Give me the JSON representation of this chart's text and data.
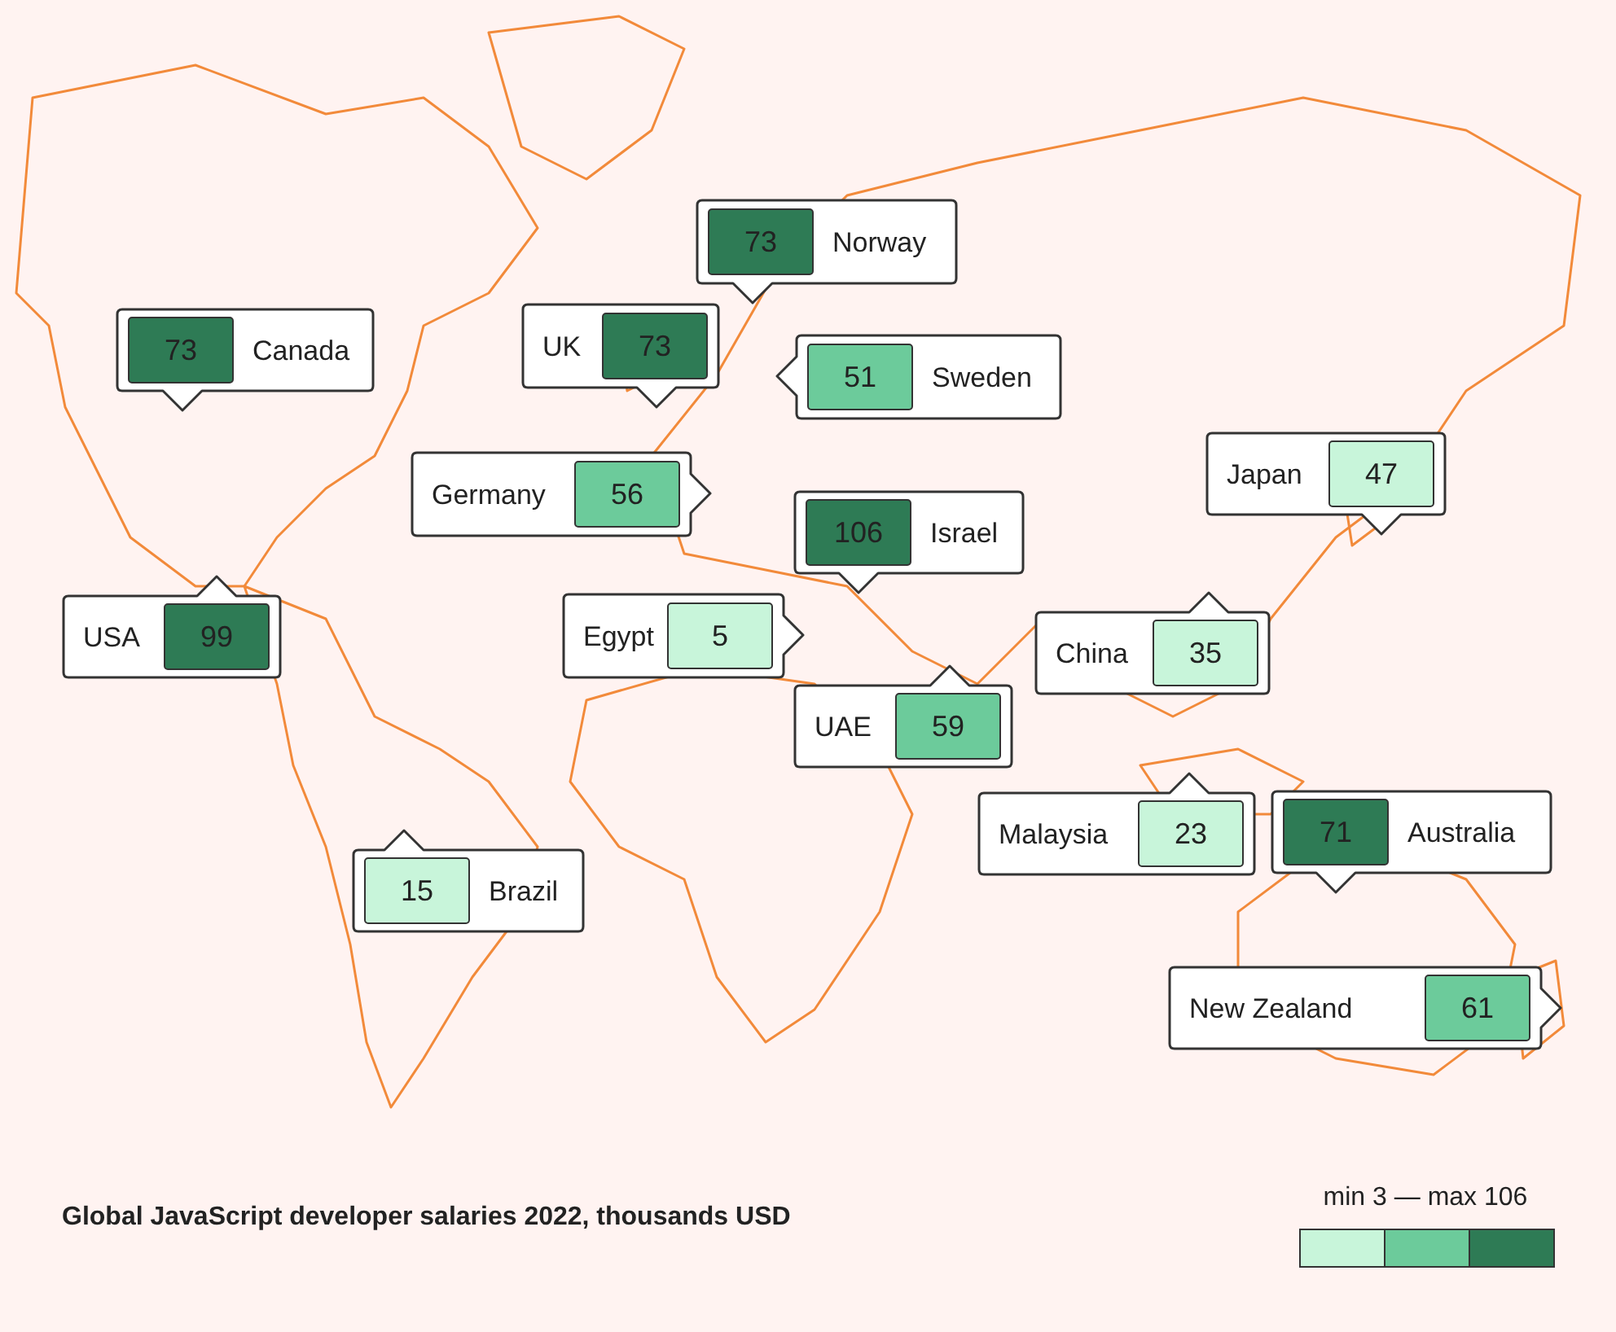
{
  "chart_data": {
    "type": "other",
    "title": "Global JavaScript developer salaries 2022, thousands USD",
    "legend_title": "min 3 — max 106",
    "categories": [
      "Canada",
      "UK",
      "Norway",
      "Sweden",
      "Germany",
      "Israel",
      "USA",
      "Egypt",
      "UAE",
      "Japan",
      "China",
      "Malaysia",
      "Australia",
      "Brazil",
      "New Zealand"
    ],
    "values": [
      73,
      73,
      73,
      51,
      56,
      106,
      99,
      5,
      59,
      47,
      35,
      23,
      71,
      15,
      61
    ],
    "colors": [
      "#2e7b55",
      "#2e7b55",
      "#2e7b55",
      "#6ccb9b",
      "#6ccb9b",
      "#2e7b55",
      "#2e7b55",
      "#c8f5da",
      "#6ccb9b",
      "#c8f5da",
      "#c8f5da",
      "#c8f5da",
      "#2e7b55",
      "#c8f5da",
      "#6ccb9b"
    ],
    "data_labels": true
  }
}
